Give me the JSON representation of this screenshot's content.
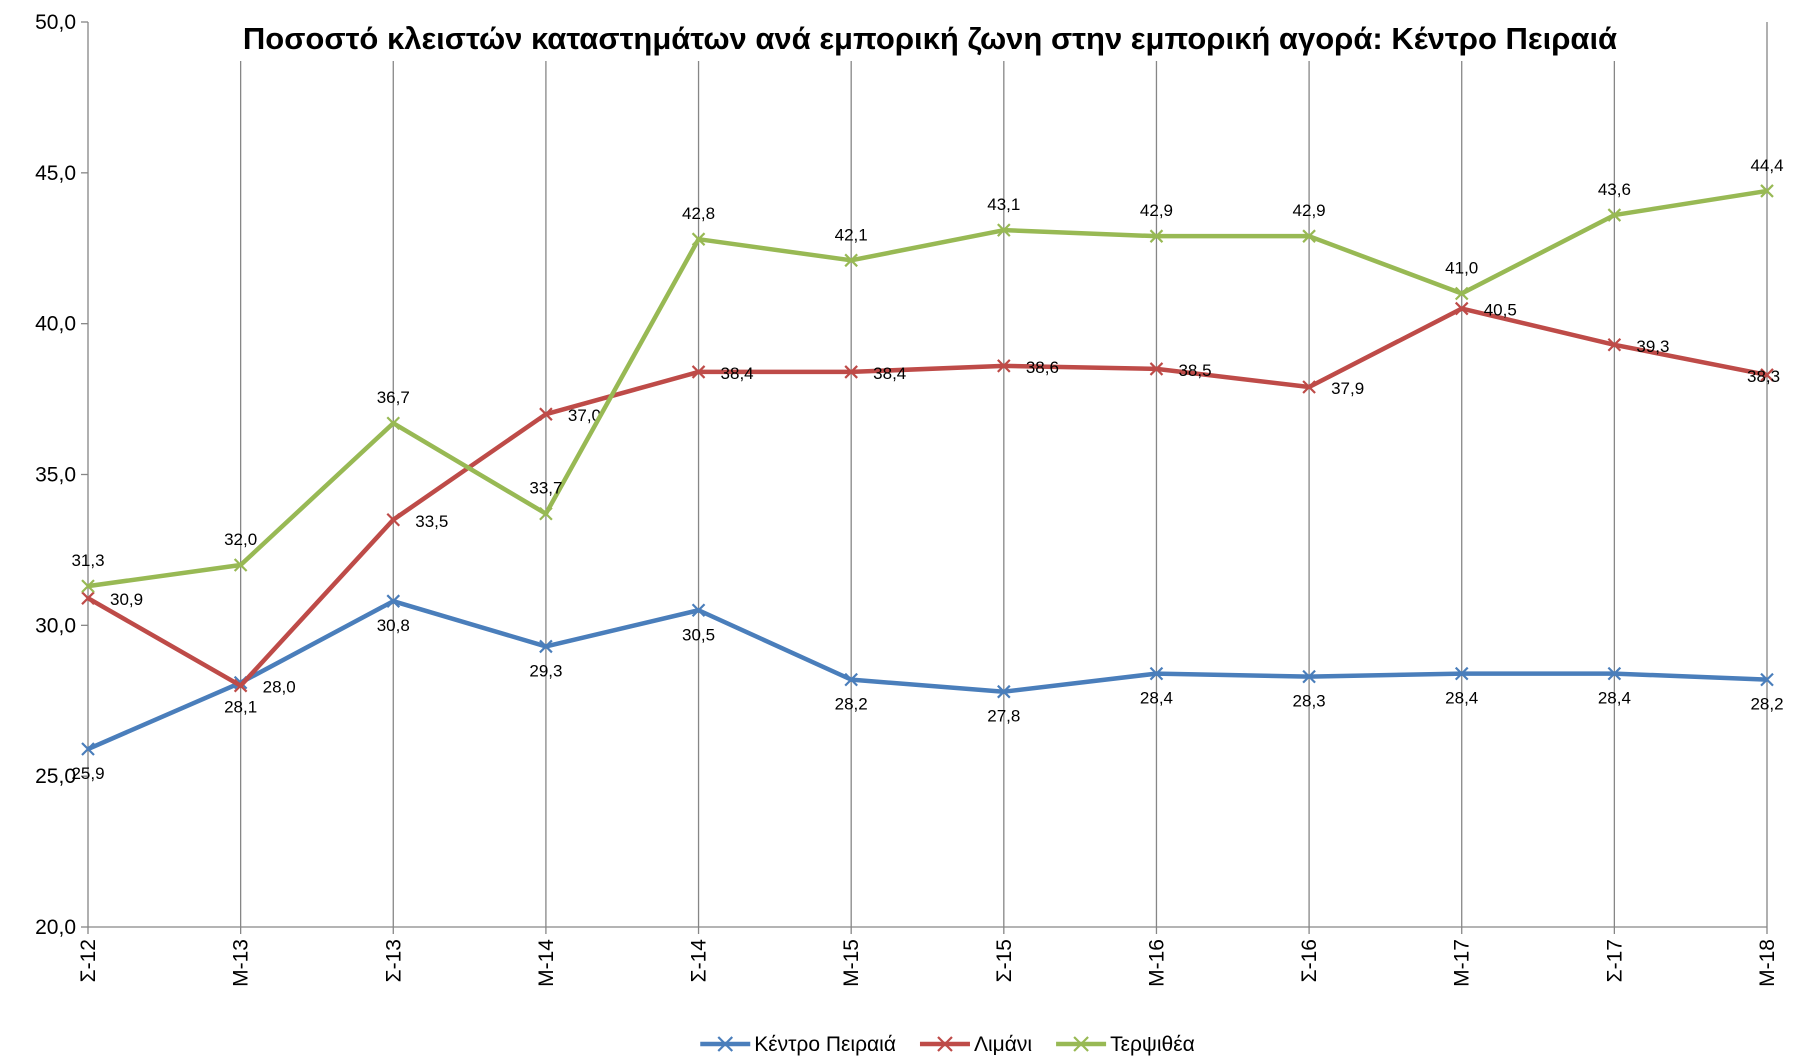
{
  "chart_data": {
    "type": "line",
    "title": "Ποσοστό κλειστών καταστημάτων ανά εμπορική ζωνη στην εμπορική αγορά: Κέντρο Πειραιά",
    "categories": [
      "Σ-12",
      "Μ-13",
      "Σ-13",
      "Μ-14",
      "Σ-14",
      "Μ-15",
      "Σ-15",
      "Μ-16",
      "Σ-16",
      "Μ-17",
      "Σ-17",
      "Μ-18"
    ],
    "series": [
      {
        "name": "Κέντρο Πειραιά",
        "color": "#4a7ebb",
        "values": [
          25.9,
          28.1,
          30.8,
          29.3,
          30.5,
          28.2,
          27.8,
          28.4,
          28.3,
          28.4,
          28.4,
          28.2
        ],
        "value_labels": [
          "25,9",
          "28,1",
          "30,8",
          "29,3",
          "30,5",
          "28,2",
          "27,8",
          "28,4",
          "28,3",
          "28,4",
          "28,4",
          "28,2"
        ]
      },
      {
        "name": "Λιμάνι",
        "color": "#be4b48",
        "values": [
          30.9,
          28.0,
          33.5,
          37.0,
          38.4,
          38.4,
          38.6,
          38.5,
          37.9,
          40.5,
          39.3,
          38.3
        ],
        "value_labels": [
          "30,9",
          "28,0",
          "33,5",
          "37,0",
          "38,4",
          "38,4",
          "38,6",
          "38,5",
          "37,9",
          "40,5",
          "39,3",
          "38,3"
        ]
      },
      {
        "name": "Τερψιθέα",
        "color": "#98b954",
        "values": [
          31.3,
          32.0,
          36.7,
          33.7,
          42.8,
          42.1,
          43.1,
          42.9,
          42.9,
          41.0,
          43.6,
          44.4
        ],
        "value_labels": [
          "31,3",
          "32,0",
          "36,7",
          "33,7",
          "42,8",
          "42,1",
          "43,1",
          "42,9",
          "42,9",
          "41,0",
          "43,6",
          "44,4"
        ]
      }
    ],
    "ylim": [
      20,
      50
    ],
    "yticks": [
      {
        "value": 20,
        "label": "20,0"
      },
      {
        "value": 25,
        "label": "25,0"
      },
      {
        "value": 30,
        "label": "30,0"
      },
      {
        "value": 35,
        "label": "35,0"
      },
      {
        "value": 40,
        "label": "40,0"
      },
      {
        "value": 45,
        "label": "45,0"
      },
      {
        "value": 50,
        "label": "50,0"
      }
    ],
    "grid": "x",
    "legend": "bottom"
  }
}
